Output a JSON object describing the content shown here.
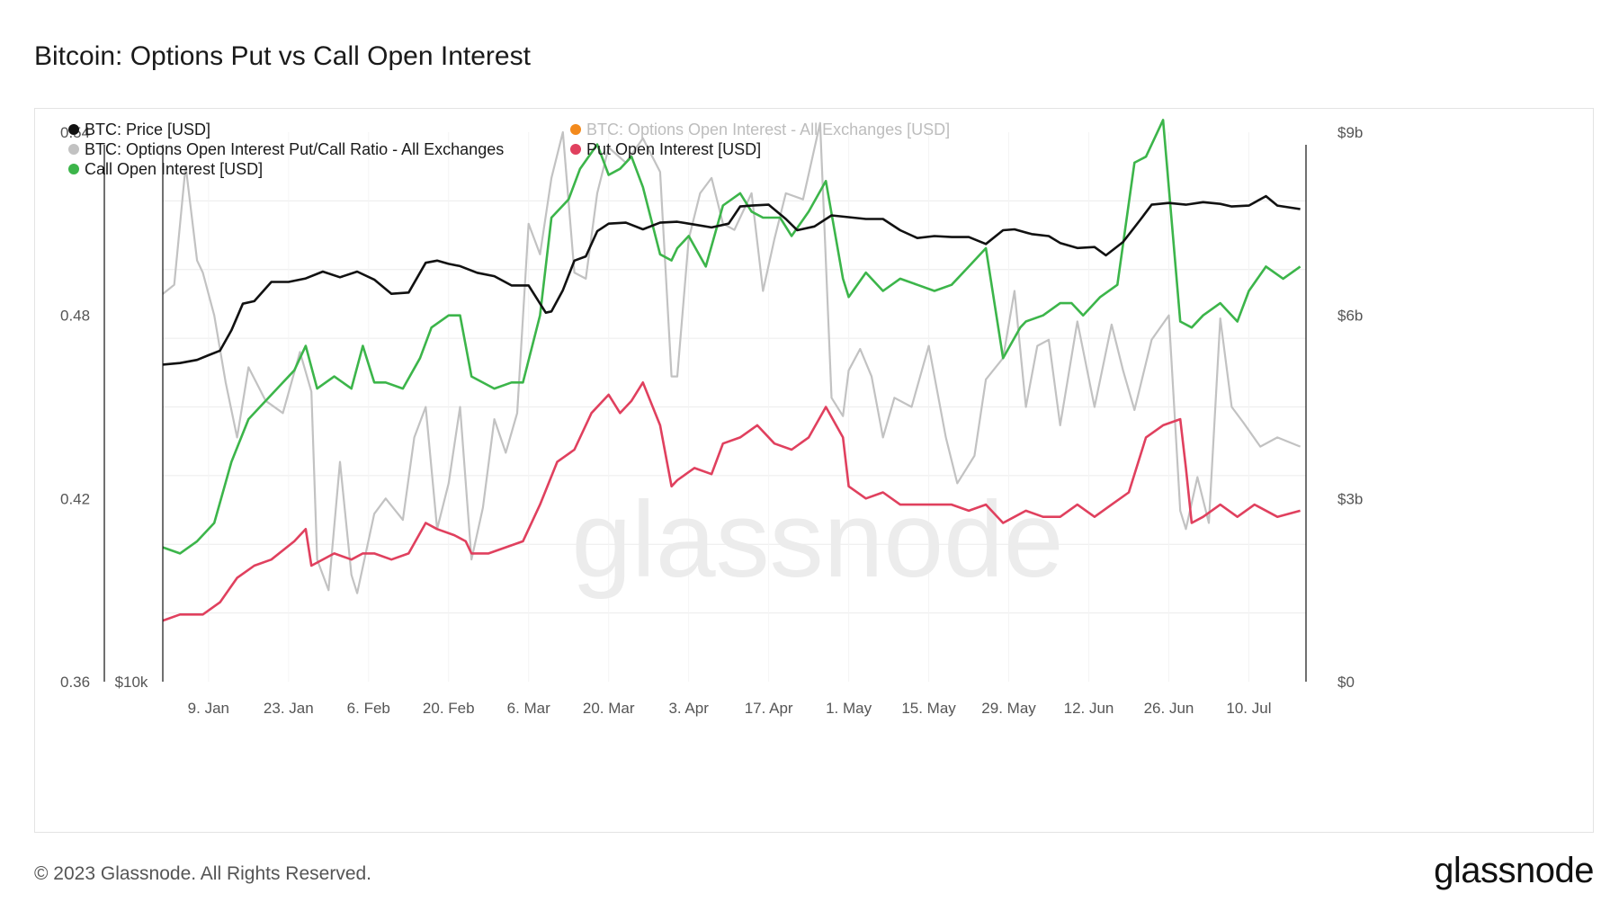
{
  "title": "Bitcoin: Options Put vs Call Open Interest",
  "footer": {
    "copyright": "© 2023 Glassnode. All Rights Reserved.",
    "brand": "glassnode"
  },
  "watermark": "glassnode",
  "colors": {
    "price": "#111111",
    "ratio": "#c2c2c2",
    "call": "#3cb54a",
    "put": "#e0405e",
    "total": "#f38a1c",
    "grid": "#ececec",
    "axis": "#111111"
  },
  "chart_data": {
    "type": "line",
    "x_range": [
      "2023-01-01",
      "2023-07-20"
    ],
    "x_ticks": [
      "9. Jan",
      "23. Jan",
      "6. Feb",
      "20. Feb",
      "6. Mar",
      "20. Mar",
      "3. Apr",
      "17. Apr",
      "1. May",
      "15. May",
      "29. May",
      "12. Jun",
      "26. Jun",
      "10. Jul"
    ],
    "x_tick_dates": [
      "2023-01-09",
      "2023-01-23",
      "2023-02-06",
      "2023-02-20",
      "2023-03-06",
      "2023-03-20",
      "2023-04-03",
      "2023-04-17",
      "2023-05-01",
      "2023-05-15",
      "2023-05-29",
      "2023-06-12",
      "2023-06-26",
      "2023-07-10"
    ],
    "left_axis": {
      "ylim": [
        0.36,
        0.54
      ],
      "ticks": [
        "0.36",
        "0.42",
        "0.48",
        "0.54"
      ],
      "tick_values": [
        0.36,
        0.42,
        0.48,
        0.54
      ]
    },
    "price_axis": {
      "ticks": [
        "$10k"
      ],
      "scale": "log"
    },
    "right_axis": {
      "ylim": [
        0,
        9
      ],
      "ticks": [
        "$0",
        "$3b",
        "$6b",
        "$9b"
      ],
      "tick_values": [
        0,
        3,
        6,
        9
      ]
    },
    "legend": {
      "placement": "top-left",
      "entries": [
        {
          "label": "BTC: Price [USD]",
          "series": "price",
          "faded": false
        },
        {
          "label": "BTC: Options Open Interest - All Exchanges [USD]",
          "series": "total",
          "faded": true
        },
        {
          "label": "BTC: Options Open Interest Put/Call Ratio - All Exchanges",
          "series": "ratio",
          "faded": false
        },
        {
          "label": "Put Open Interest [USD]",
          "series": "put",
          "faded": false
        },
        {
          "label": "Call Open Interest [USD]",
          "series": "call",
          "faded": false
        }
      ]
    },
    "series": [
      {
        "name": "BTC: Price [USD]",
        "key": "price",
        "axis": "price",
        "unit": "USD",
        "x": [
          "2023-01-01",
          "2023-01-04",
          "2023-01-07",
          "2023-01-09",
          "2023-01-11",
          "2023-01-13",
          "2023-01-15",
          "2023-01-17",
          "2023-01-20",
          "2023-01-23",
          "2023-01-26",
          "2023-01-29",
          "2023-02-01",
          "2023-02-04",
          "2023-02-07",
          "2023-02-10",
          "2023-02-13",
          "2023-02-16",
          "2023-02-18",
          "2023-02-20",
          "2023-02-22",
          "2023-02-25",
          "2023-02-28",
          "2023-03-03",
          "2023-03-06",
          "2023-03-09",
          "2023-03-10",
          "2023-03-12",
          "2023-03-14",
          "2023-03-16",
          "2023-03-18",
          "2023-03-20",
          "2023-03-23",
          "2023-03-26",
          "2023-03-29",
          "2023-04-01",
          "2023-04-04",
          "2023-04-07",
          "2023-04-10",
          "2023-04-12",
          "2023-04-14",
          "2023-04-17",
          "2023-04-20",
          "2023-04-22",
          "2023-04-25",
          "2023-04-28",
          "2023-05-01",
          "2023-05-04",
          "2023-05-07",
          "2023-05-10",
          "2023-05-13",
          "2023-05-16",
          "2023-05-19",
          "2023-05-22",
          "2023-05-25",
          "2023-05-28",
          "2023-05-30",
          "2023-06-02",
          "2023-06-05",
          "2023-06-07",
          "2023-06-10",
          "2023-06-13",
          "2023-06-15",
          "2023-06-18",
          "2023-06-21",
          "2023-06-23",
          "2023-06-26",
          "2023-06-29",
          "2023-07-02",
          "2023-07-05",
          "2023-07-07",
          "2023-07-10",
          "2023-07-13",
          "2023-07-15",
          "2023-07-19"
        ],
        "values": [
          16600,
          16700,
          16900,
          17200,
          17500,
          18900,
          20900,
          21100,
          22700,
          22700,
          23000,
          23600,
          23100,
          23600,
          22900,
          21700,
          21800,
          24400,
          24600,
          24300,
          24100,
          23500,
          23200,
          22400,
          22400,
          20200,
          20300,
          22000,
          24600,
          25000,
          27500,
          28300,
          28400,
          27700,
          28400,
          28500,
          28200,
          27900,
          28300,
          30200,
          30300,
          30400,
          28800,
          27600,
          28000,
          29200,
          29000,
          28800,
          28800,
          27600,
          26800,
          27000,
          26900,
          26900,
          26200,
          27600,
          27700,
          27200,
          27000,
          26300,
          25800,
          25900,
          25100,
          26400,
          28700,
          30400,
          30600,
          30400,
          30700,
          30500,
          30200,
          30300,
          31400,
          30300,
          29900
        ]
      },
      {
        "name": "BTC: Options Open Interest Put/Call Ratio - All Exchanges",
        "key": "ratio",
        "axis": "left",
        "x": [
          "2023-01-01",
          "2023-01-03",
          "2023-01-05",
          "2023-01-07",
          "2023-01-08",
          "2023-01-10",
          "2023-01-12",
          "2023-01-14",
          "2023-01-16",
          "2023-01-19",
          "2023-01-22",
          "2023-01-25",
          "2023-01-27",
          "2023-01-28",
          "2023-01-30",
          "2023-02-01",
          "2023-02-03",
          "2023-02-04",
          "2023-02-07",
          "2023-02-09",
          "2023-02-12",
          "2023-02-14",
          "2023-02-16",
          "2023-02-18",
          "2023-02-20",
          "2023-02-22",
          "2023-02-24",
          "2023-02-26",
          "2023-02-28",
          "2023-03-02",
          "2023-03-04",
          "2023-03-06",
          "2023-03-08",
          "2023-03-10",
          "2023-03-12",
          "2023-03-14",
          "2023-03-16",
          "2023-03-18",
          "2023-03-20",
          "2023-03-23",
          "2023-03-26",
          "2023-03-29",
          "2023-03-31",
          "2023-04-01",
          "2023-04-03",
          "2023-04-05",
          "2023-04-07",
          "2023-04-09",
          "2023-04-11",
          "2023-04-14",
          "2023-04-16",
          "2023-04-18",
          "2023-04-20",
          "2023-04-23",
          "2023-04-26",
          "2023-04-28",
          "2023-04-30",
          "2023-05-01",
          "2023-05-03",
          "2023-05-05",
          "2023-05-07",
          "2023-05-09",
          "2023-05-12",
          "2023-05-15",
          "2023-05-18",
          "2023-05-20",
          "2023-05-23",
          "2023-05-25",
          "2023-05-28",
          "2023-05-30",
          "2023-06-01",
          "2023-06-03",
          "2023-06-05",
          "2023-06-07",
          "2023-06-10",
          "2023-06-13",
          "2023-06-16",
          "2023-06-18",
          "2023-06-20",
          "2023-06-23",
          "2023-06-26",
          "2023-06-28",
          "2023-06-29",
          "2023-07-01",
          "2023-07-03",
          "2023-07-05",
          "2023-07-07",
          "2023-07-09",
          "2023-07-12",
          "2023-07-15",
          "2023-07-19"
        ],
        "values": [
          0.487,
          0.49,
          0.529,
          0.498,
          0.494,
          0.48,
          0.458,
          0.44,
          0.463,
          0.452,
          0.448,
          0.468,
          0.455,
          0.4,
          0.39,
          0.432,
          0.395,
          0.389,
          0.415,
          0.42,
          0.413,
          0.44,
          0.45,
          0.41,
          0.425,
          0.45,
          0.4,
          0.417,
          0.446,
          0.435,
          0.448,
          0.51,
          0.5,
          0.525,
          0.54,
          0.494,
          0.492,
          0.52,
          0.535,
          0.53,
          0.538,
          0.527,
          0.46,
          0.46,
          0.505,
          0.52,
          0.525,
          0.51,
          0.508,
          0.52,
          0.488,
          0.505,
          0.52,
          0.518,
          0.543,
          0.453,
          0.447,
          0.462,
          0.469,
          0.46,
          0.44,
          0.453,
          0.45,
          0.47,
          0.44,
          0.425,
          0.434,
          0.459,
          0.466,
          0.488,
          0.45,
          0.47,
          0.472,
          0.444,
          0.478,
          0.45,
          0.477,
          0.462,
          0.449,
          0.472,
          0.48,
          0.416,
          0.41,
          0.427,
          0.412,
          0.479,
          0.45,
          0.445,
          0.437,
          0.44,
          0.437
        ]
      },
      {
        "name": "Call Open Interest [USD]",
        "key": "call",
        "axis": "right",
        "unit": "USD bn",
        "x": [
          "2023-01-01",
          "2023-01-04",
          "2023-01-07",
          "2023-01-10",
          "2023-01-13",
          "2023-01-16",
          "2023-01-18",
          "2023-01-21",
          "2023-01-24",
          "2023-01-26",
          "2023-01-28",
          "2023-01-31",
          "2023-02-03",
          "2023-02-05",
          "2023-02-07",
          "2023-02-09",
          "2023-02-12",
          "2023-02-15",
          "2023-02-17",
          "2023-02-20",
          "2023-02-22",
          "2023-02-24",
          "2023-02-28",
          "2023-03-03",
          "2023-03-05",
          "2023-03-08",
          "2023-03-10",
          "2023-03-13",
          "2023-03-15",
          "2023-03-18",
          "2023-03-20",
          "2023-03-22",
          "2023-03-24",
          "2023-03-26",
          "2023-03-29",
          "2023-03-31",
          "2023-04-01",
          "2023-04-03",
          "2023-04-06",
          "2023-04-09",
          "2023-04-12",
          "2023-04-14",
          "2023-04-16",
          "2023-04-19",
          "2023-04-21",
          "2023-04-24",
          "2023-04-27",
          "2023-04-30",
          "2023-05-01",
          "2023-05-04",
          "2023-05-07",
          "2023-05-10",
          "2023-05-13",
          "2023-05-16",
          "2023-05-19",
          "2023-05-22",
          "2023-05-25",
          "2023-05-28",
          "2023-05-31",
          "2023-06-01",
          "2023-06-04",
          "2023-06-07",
          "2023-06-09",
          "2023-06-11",
          "2023-06-14",
          "2023-06-17",
          "2023-06-20",
          "2023-06-22",
          "2023-06-25",
          "2023-06-28",
          "2023-06-30",
          "2023-07-02",
          "2023-07-05",
          "2023-07-08",
          "2023-07-10",
          "2023-07-13",
          "2023-07-16",
          "2023-07-19"
        ],
        "values": [
          2.2,
          2.1,
          2.3,
          2.6,
          3.6,
          4.3,
          4.5,
          4.8,
          5.1,
          5.5,
          4.8,
          5.0,
          4.8,
          5.5,
          4.9,
          4.9,
          4.8,
          5.3,
          5.8,
          6.0,
          6.0,
          5.0,
          4.8,
          4.9,
          4.9,
          6.0,
          7.6,
          7.9,
          8.4,
          8.8,
          8.3,
          8.4,
          8.6,
          8.1,
          7.0,
          6.9,
          7.1,
          7.3,
          6.8,
          7.8,
          8.0,
          7.7,
          7.6,
          7.6,
          7.3,
          7.7,
          8.2,
          6.6,
          6.3,
          6.7,
          6.4,
          6.6,
          6.5,
          6.4,
          6.5,
          6.8,
          7.1,
          5.3,
          5.8,
          5.9,
          6.0,
          6.2,
          6.2,
          6.0,
          6.3,
          6.5,
          8.5,
          8.6,
          9.2,
          5.9,
          5.8,
          6.0,
          6.2,
          5.9,
          6.4,
          6.8,
          6.6,
          6.8
        ]
      },
      {
        "name": "Put Open Interest [USD]",
        "key": "put",
        "axis": "right",
        "unit": "USD bn",
        "x": [
          "2023-01-01",
          "2023-01-04",
          "2023-01-08",
          "2023-01-11",
          "2023-01-14",
          "2023-01-17",
          "2023-01-20",
          "2023-01-24",
          "2023-01-26",
          "2023-01-27",
          "2023-01-31",
          "2023-02-03",
          "2023-02-05",
          "2023-02-07",
          "2023-02-10",
          "2023-02-13",
          "2023-02-16",
          "2023-02-18",
          "2023-02-21",
          "2023-02-23",
          "2023-02-24",
          "2023-02-27",
          "2023-03-02",
          "2023-03-05",
          "2023-03-08",
          "2023-03-11",
          "2023-03-14",
          "2023-03-17",
          "2023-03-20",
          "2023-03-22",
          "2023-03-24",
          "2023-03-26",
          "2023-03-29",
          "2023-03-31",
          "2023-04-01",
          "2023-04-04",
          "2023-04-07",
          "2023-04-09",
          "2023-04-12",
          "2023-04-15",
          "2023-04-18",
          "2023-04-21",
          "2023-04-24",
          "2023-04-27",
          "2023-04-30",
          "2023-05-01",
          "2023-05-04",
          "2023-05-07",
          "2023-05-10",
          "2023-05-13",
          "2023-05-16",
          "2023-05-19",
          "2023-05-22",
          "2023-05-25",
          "2023-05-28",
          "2023-05-30",
          "2023-06-01",
          "2023-06-04",
          "2023-06-07",
          "2023-06-10",
          "2023-06-13",
          "2023-06-16",
          "2023-06-19",
          "2023-06-22",
          "2023-06-25",
          "2023-06-28",
          "2023-06-29",
          "2023-06-30",
          "2023-07-02",
          "2023-07-05",
          "2023-07-08",
          "2023-07-11",
          "2023-07-15",
          "2023-07-19"
        ],
        "values": [
          1.0,
          1.1,
          1.1,
          1.3,
          1.7,
          1.9,
          2.0,
          2.3,
          2.5,
          1.9,
          2.1,
          2.0,
          2.1,
          2.1,
          2.0,
          2.1,
          2.6,
          2.5,
          2.4,
          2.3,
          2.1,
          2.1,
          2.2,
          2.3,
          2.9,
          3.6,
          3.8,
          4.4,
          4.7,
          4.4,
          4.6,
          4.9,
          4.2,
          3.2,
          3.3,
          3.5,
          3.4,
          3.9,
          4.0,
          4.2,
          3.9,
          3.8,
          4.0,
          4.5,
          4.0,
          3.2,
          3.0,
          3.1,
          2.9,
          2.9,
          2.9,
          2.9,
          2.8,
          2.9,
          2.6,
          2.7,
          2.8,
          2.7,
          2.7,
          2.9,
          2.7,
          2.9,
          3.1,
          4.0,
          4.2,
          4.3,
          3.5,
          2.6,
          2.7,
          2.9,
          2.7,
          2.9,
          2.7,
          2.8
        ]
      }
    ]
  }
}
